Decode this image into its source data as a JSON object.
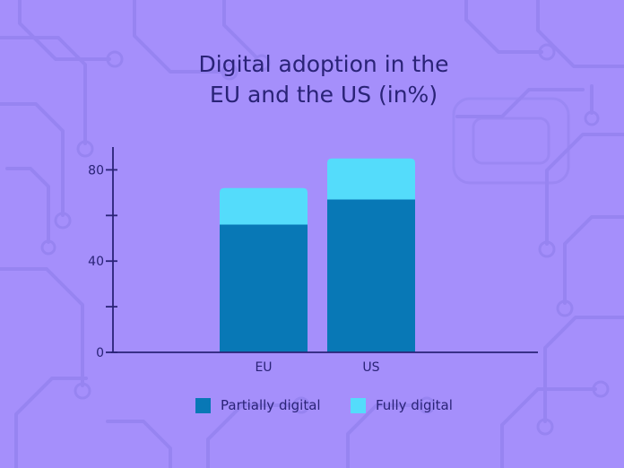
{
  "colors": {
    "background": "#a58ffb",
    "pattern": "#9682ef",
    "axis": "#2a2377",
    "text": "#2a2377",
    "partially_digital": "#0878b6",
    "fully_digital": "#54dcfb"
  },
  "chart_data": {
    "type": "bar",
    "stacked": true,
    "title": [
      "Digital adoption in the",
      "EU and the US (in%)"
    ],
    "categories": [
      "EU",
      "US"
    ],
    "series": [
      {
        "name": "Partially digital",
        "values": [
          56,
          67
        ],
        "color": "#0878b6"
      },
      {
        "name": "Fully digital",
        "values": [
          16,
          18
        ],
        "color": "#54dcfb"
      }
    ],
    "ylim": [
      0,
      90
    ],
    "yticks": [
      0,
      20,
      40,
      60,
      80
    ],
    "ytick_labels": [
      "0",
      "",
      "40",
      "",
      "80"
    ],
    "xlabel": "",
    "ylabel": "",
    "grid": false,
    "legend": "bottom"
  }
}
